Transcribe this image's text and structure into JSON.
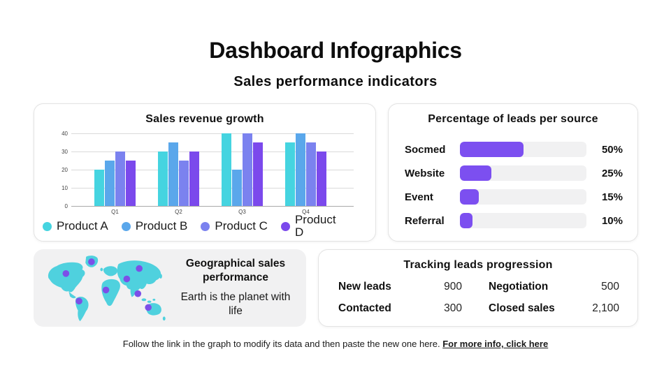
{
  "page": {
    "title": "Dashboard Infographics",
    "subtitle": "Sales performance indicators",
    "footer_text": "Follow the link in the graph to modify its data and then paste the new one here. ",
    "footer_link": "For more info, click here"
  },
  "colors": {
    "product_a": "#45d4e0",
    "product_b": "#5aa7eb",
    "product_c": "#7b82ef",
    "product_d": "#7b49ec",
    "leads_bar": "#7c4ff0",
    "leads_track": "#f1f1f2",
    "map_land": "#4fd1de",
    "map_dot": "#7c4fe8"
  },
  "chart_data": [
    {
      "type": "bar",
      "title": "Sales revenue growth",
      "categories": [
        "Q1",
        "Q2",
        "Q3",
        "Q4"
      ],
      "series": [
        {
          "name": "Product A",
          "color": "#45d4e0",
          "values": [
            20,
            30,
            40,
            35
          ]
        },
        {
          "name": "Product B",
          "color": "#5aa7eb",
          "values": [
            25,
            35,
            20,
            40
          ]
        },
        {
          "name": "Product C",
          "color": "#7b82ef",
          "values": [
            30,
            25,
            40,
            35
          ]
        },
        {
          "name": "Product D",
          "color": "#7b49ec",
          "values": [
            25,
            30,
            35,
            30
          ]
        }
      ],
      "ylim": [
        0,
        40
      ],
      "yticks": [
        0,
        10,
        20,
        30,
        40
      ],
      "grid": true,
      "legend_position": "bottom"
    },
    {
      "type": "bar",
      "orientation": "horizontal",
      "title": "Percentage of leads per source",
      "categories": [
        "Socmed",
        "Website",
        "Event",
        "Referral"
      ],
      "values": [
        50,
        25,
        15,
        10
      ],
      "value_labels": [
        "50%",
        "25%",
        "15%",
        "10%"
      ],
      "xlim": [
        0,
        100
      ],
      "bar_color": "#7c4ff0"
    }
  ],
  "geo_card": {
    "title": "Geographical sales performance",
    "subtitle": "Earth is the planet with life",
    "dots": [
      [
        134,
        27
      ],
      [
        58,
        62
      ],
      [
        276,
        47
      ],
      [
        239,
        78
      ],
      [
        177,
        111
      ],
      [
        97,
        144
      ],
      [
        272,
        122
      ],
      [
        303,
        163
      ]
    ]
  },
  "tracking_card": {
    "title": "Tracking leads progression",
    "items": [
      {
        "label": "New leads",
        "value": "900"
      },
      {
        "label": "Negotiation",
        "value": "500"
      },
      {
        "label": "Contacted",
        "value": "300"
      },
      {
        "label": "Closed sales",
        "value": "2,100"
      }
    ]
  }
}
